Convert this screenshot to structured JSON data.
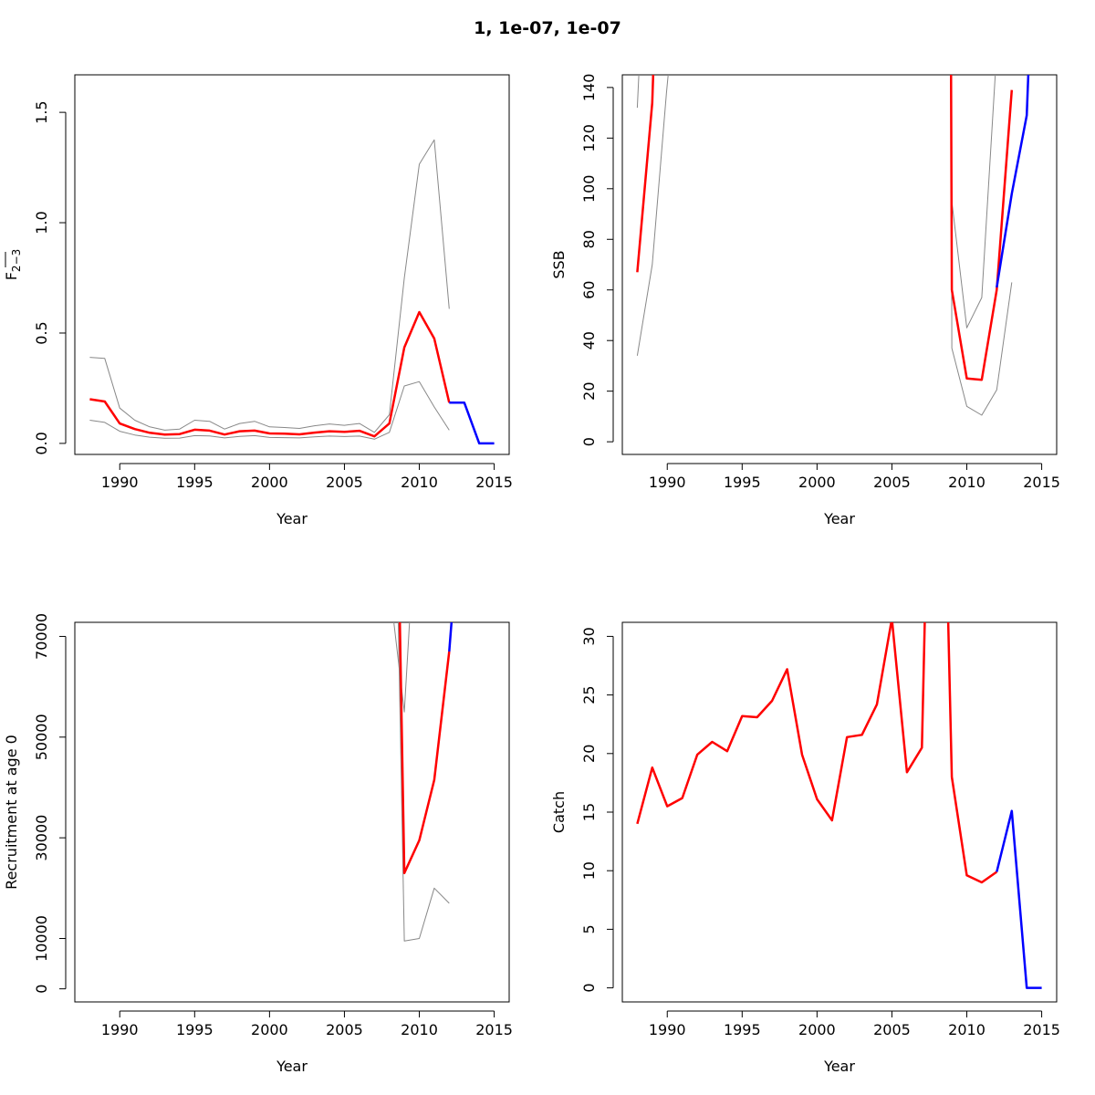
{
  "title": "1, 1e-07, 1e-07",
  "colors": {
    "estimate": "#ff0000",
    "forecast": "#0000ff",
    "ci": "#888888",
    "axis": "#000000"
  },
  "chart_data": [
    {
      "type": "line",
      "ylabel_main": "F",
      "ylabel_sub": "2−3",
      "xlabel": "Year",
      "xlim": [
        1987,
        2016
      ],
      "ylim": [
        -0.05,
        1.67
      ],
      "xticks": [
        1990,
        1995,
        2000,
        2005,
        2010,
        2015
      ],
      "xtick_labels": [
        "1990",
        "1995",
        "2000",
        "2005",
        "2010",
        "2015"
      ],
      "yticks": [
        0,
        0.5,
        1.0,
        1.5
      ],
      "ytick_labels": [
        "0.0",
        "0.5",
        "1.0",
        "1.5"
      ],
      "series": [
        {
          "role": "upper",
          "color": "#888888",
          "x": [
            1988,
            1989,
            1990,
            1991,
            1992,
            1993,
            1994,
            1995,
            1996,
            1997,
            1998,
            1999,
            2000,
            2001,
            2002,
            2003,
            2004,
            2005,
            2006,
            2007,
            2008,
            2009,
            2010,
            2011,
            2012
          ],
          "y": [
            0.39,
            0.385,
            0.16,
            0.105,
            0.075,
            0.06,
            0.065,
            0.105,
            0.1,
            0.065,
            0.09,
            0.1,
            0.075,
            0.072,
            0.068,
            0.08,
            0.088,
            0.082,
            0.09,
            0.05,
            0.13,
            0.75,
            1.265,
            1.375,
            0.61
          ]
        },
        {
          "role": "lower",
          "color": "#888888",
          "x": [
            1988,
            1989,
            1990,
            1991,
            1992,
            1993,
            1994,
            1995,
            1996,
            1997,
            1998,
            1999,
            2000,
            2001,
            2002,
            2003,
            2004,
            2005,
            2006,
            2007,
            2008,
            2009,
            2010,
            2011,
            2012
          ],
          "y": [
            0.105,
            0.095,
            0.055,
            0.038,
            0.028,
            0.023,
            0.024,
            0.035,
            0.034,
            0.025,
            0.032,
            0.035,
            0.027,
            0.026,
            0.025,
            0.03,
            0.033,
            0.031,
            0.033,
            0.019,
            0.05,
            0.26,
            0.28,
            0.165,
            0.06
          ]
        },
        {
          "role": "estimate",
          "color": "#ff0000",
          "x": [
            1988,
            1989,
            1990,
            1991,
            1992,
            1993,
            1994,
            1995,
            1996,
            1997,
            1998,
            1999,
            2000,
            2001,
            2002,
            2003,
            2004,
            2005,
            2006,
            2007,
            2008,
            2009,
            2010,
            2011,
            2012
          ],
          "y": [
            0.2,
            0.19,
            0.09,
            0.065,
            0.048,
            0.04,
            0.042,
            0.062,
            0.058,
            0.04,
            0.055,
            0.058,
            0.045,
            0.044,
            0.041,
            0.049,
            0.055,
            0.052,
            0.057,
            0.032,
            0.09,
            0.435,
            0.595,
            0.475,
            0.185
          ]
        },
        {
          "role": "forecast",
          "color": "#0000ff",
          "x": [
            2012,
            2013,
            2014,
            2015
          ],
          "y": [
            0.185,
            0.185,
            0,
            0
          ]
        }
      ]
    },
    {
      "type": "line",
      "ylabel_main": "SSB",
      "ylabel_sub": "",
      "xlabel": "Year",
      "xlim": [
        1987,
        2016
      ],
      "ylim": [
        -5,
        145
      ],
      "xticks": [
        1990,
        1995,
        2000,
        2005,
        2010,
        2015
      ],
      "xtick_labels": [
        "1990",
        "1995",
        "2000",
        "2005",
        "2010",
        "2015"
      ],
      "yticks": [
        0,
        20,
        40,
        60,
        80,
        100,
        120,
        140
      ],
      "ytick_labels": [
        "0",
        "20",
        "40",
        "60",
        "80",
        "100",
        "120",
        "140"
      ],
      "series": [
        {
          "role": "upper",
          "color": "#888888",
          "x": [
            1988,
            1988.1,
            1988.3
          ],
          "y": [
            132,
            145,
            220
          ]
        },
        {
          "role": "lower",
          "color": "#888888",
          "x": [
            1988,
            1989,
            1989.95,
            1990.3
          ],
          "y": [
            34,
            70,
            138,
            160
          ]
        },
        {
          "role": "estimate",
          "color": "#ff0000",
          "x": [
            1988,
            1989,
            1989.2
          ],
          "y": [
            67,
            134,
            170
          ]
        },
        {
          "role": "upper",
          "color": "#888888",
          "x": [
            2008.97,
            2009,
            2010,
            2011,
            2011.9,
            2012.1
          ],
          "y": [
            170,
            95,
            45,
            57,
            145,
            175
          ]
        },
        {
          "role": "lower",
          "color": "#888888",
          "x": [
            2008.95,
            2009,
            2010,
            2011,
            2012,
            2013
          ],
          "y": [
            180,
            37,
            14,
            10.5,
            20.5,
            63
          ]
        },
        {
          "role": "estimate",
          "color": "#ff0000",
          "x": [
            2008.93,
            2009,
            2010,
            2011,
            2012,
            2013
          ],
          "y": [
            170,
            60,
            25,
            24.5,
            60,
            139
          ]
        },
        {
          "role": "forecast",
          "color": "#0000ff",
          "x": [
            2012,
            2013,
            2014,
            2014.2
          ],
          "y": [
            61,
            98,
            129,
            160
          ]
        }
      ]
    },
    {
      "type": "line",
      "ylabel_main": "Recruitment at age 0",
      "ylabel_sub": "",
      "xlabel": "Year",
      "xlim": [
        1987,
        2016
      ],
      "ylim": [
        -2600,
        72800
      ],
      "xticks": [
        1990,
        1995,
        2000,
        2005,
        2010,
        2015
      ],
      "xtick_labels": [
        "1990",
        "1995",
        "2000",
        "2005",
        "2010",
        "2015"
      ],
      "yticks": [
        0,
        10000,
        30000,
        50000,
        70000
      ],
      "ytick_labels": [
        "0",
        "10000",
        "30000",
        "50000",
        "70000"
      ],
      "series": [
        {
          "role": "upper",
          "color": "#888888",
          "x": [
            2008.3,
            2009,
            2009.35
          ],
          "y": [
            72800,
            55000,
            72800
          ]
        },
        {
          "role": "lower",
          "color": "#888888",
          "x": [
            2008.6,
            2009,
            2010,
            2011,
            2012
          ],
          "y": [
            72800,
            9500,
            10000,
            20000,
            17000
          ]
        },
        {
          "role": "estimate",
          "color": "#ff0000",
          "x": [
            2008.7,
            2009,
            2010,
            2011,
            2012
          ],
          "y": [
            72800,
            23000,
            29500,
            41500,
            67000
          ]
        },
        {
          "role": "forecast",
          "color": "#0000ff",
          "x": [
            2012,
            2012.15
          ],
          "y": [
            67000,
            72800
          ]
        }
      ]
    },
    {
      "type": "line",
      "ylabel_main": "Catch",
      "ylabel_sub": "",
      "xlabel": "Year",
      "xlim": [
        1987,
        2016
      ],
      "ylim": [
        -1.2,
        31.2
      ],
      "xticks": [
        1990,
        1995,
        2000,
        2005,
        2010,
        2015
      ],
      "xtick_labels": [
        "1990",
        "1995",
        "2000",
        "2005",
        "2010",
        "2015"
      ],
      "yticks": [
        0,
        5,
        10,
        15,
        20,
        25,
        30
      ],
      "ytick_labels": [
        "0",
        "5",
        "10",
        "15",
        "20",
        "25",
        "30"
      ],
      "series": [
        {
          "role": "estimate",
          "color": "#ff0000",
          "x": [
            1988,
            1989,
            1990,
            1991,
            1992,
            1993,
            1994,
            1995,
            1996,
            1997,
            1998,
            1999,
            2000,
            2001,
            2002,
            2003,
            2004,
            2005,
            2006,
            2007,
            2007.35
          ],
          "y": [
            14,
            18.8,
            15.5,
            16.2,
            19.9,
            21,
            20.2,
            23.2,
            23.1,
            24.5,
            27.2,
            19.9,
            16.1,
            14.3,
            21.4,
            21.6,
            24.2,
            31.5,
            18.4,
            20.5,
            40
          ]
        },
        {
          "role": "estimate",
          "color": "#ff0000",
          "x": [
            2008.6,
            2009,
            2010,
            2011,
            2012
          ],
          "y": [
            40,
            18,
            9.6,
            9,
            9.9
          ]
        },
        {
          "role": "forecast",
          "color": "#0000ff",
          "x": [
            2012,
            2013,
            2014,
            2015
          ],
          "y": [
            9.9,
            15.1,
            0,
            0
          ]
        }
      ]
    }
  ]
}
